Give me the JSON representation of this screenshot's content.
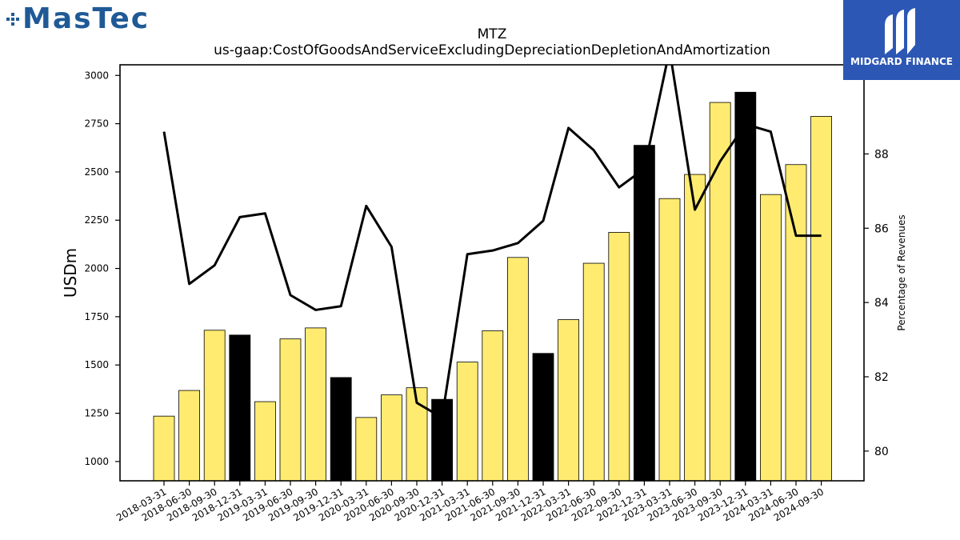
{
  "branding": {
    "left_logo_text": "MasTec",
    "right_logo_text": "MIDGARD FINANCE"
  },
  "colors": {
    "bar_default": "#ffeb70",
    "bar_highlight": "#000000",
    "line": "#000000",
    "left_brand": "#1f5a96",
    "right_brand_bg": "#2c57b4"
  },
  "chart_data": {
    "type": "bar",
    "title": "MTZ",
    "subtitle": "us-gaap:CostOfGoodsAndServiceExcludingDepreciationDepletionAndAmortization",
    "ylabel": "USDm",
    "y2label": "Percentage of Revenues",
    "ylim": [
      900,
      3055
    ],
    "y2lim": [
      79.2,
      90.4
    ],
    "yticks": [
      1000,
      1250,
      1500,
      1750,
      2000,
      2250,
      2500,
      2750,
      3000
    ],
    "y2ticks": [
      80,
      82,
      84,
      86,
      88
    ],
    "categories": [
      "2018-03-31",
      "2018-06-30",
      "2018-09-30",
      "2018-12-31",
      "2019-03-31",
      "2019-06-30",
      "2019-09-30",
      "2019-12-31",
      "2020-03-31",
      "2020-06-30",
      "2020-09-30",
      "2020-12-31",
      "2021-03-31",
      "2021-06-30",
      "2021-09-30",
      "2021-12-31",
      "2022-03-31",
      "2022-06-30",
      "2022-09-30",
      "2022-12-31",
      "2023-03-31",
      "2023-06-30",
      "2023-09-30",
      "2023-12-31",
      "2024-03-31",
      "2024-06-30",
      "2024-09-30"
    ],
    "series": [
      {
        "type": "bar",
        "values": [
          1235,
          1368,
          1680,
          1655,
          1310,
          1635,
          1692,
          1435,
          1228,
          1345,
          1382,
          1322,
          1515,
          1677,
          2057,
          1560,
          1735,
          2027,
          2187,
          2638,
          2362,
          2487,
          2860,
          2913,
          2383,
          2538,
          2788
        ],
        "highlighted": [
          false,
          false,
          false,
          true,
          false,
          false,
          false,
          true,
          false,
          false,
          false,
          true,
          false,
          false,
          false,
          true,
          false,
          false,
          false,
          true,
          false,
          false,
          false,
          true,
          false,
          false,
          false
        ]
      },
      {
        "type": "line",
        "axis": "right",
        "values": [
          88.6,
          84.5,
          85.0,
          86.3,
          86.4,
          84.2,
          83.8,
          83.9,
          86.6,
          85.5,
          81.3,
          80.9,
          85.3,
          85.4,
          85.6,
          86.2,
          88.7,
          88.1,
          87.1,
          87.6,
          90.8,
          86.5,
          87.8,
          88.8,
          88.6,
          85.8,
          85.8
        ]
      }
    ]
  }
}
